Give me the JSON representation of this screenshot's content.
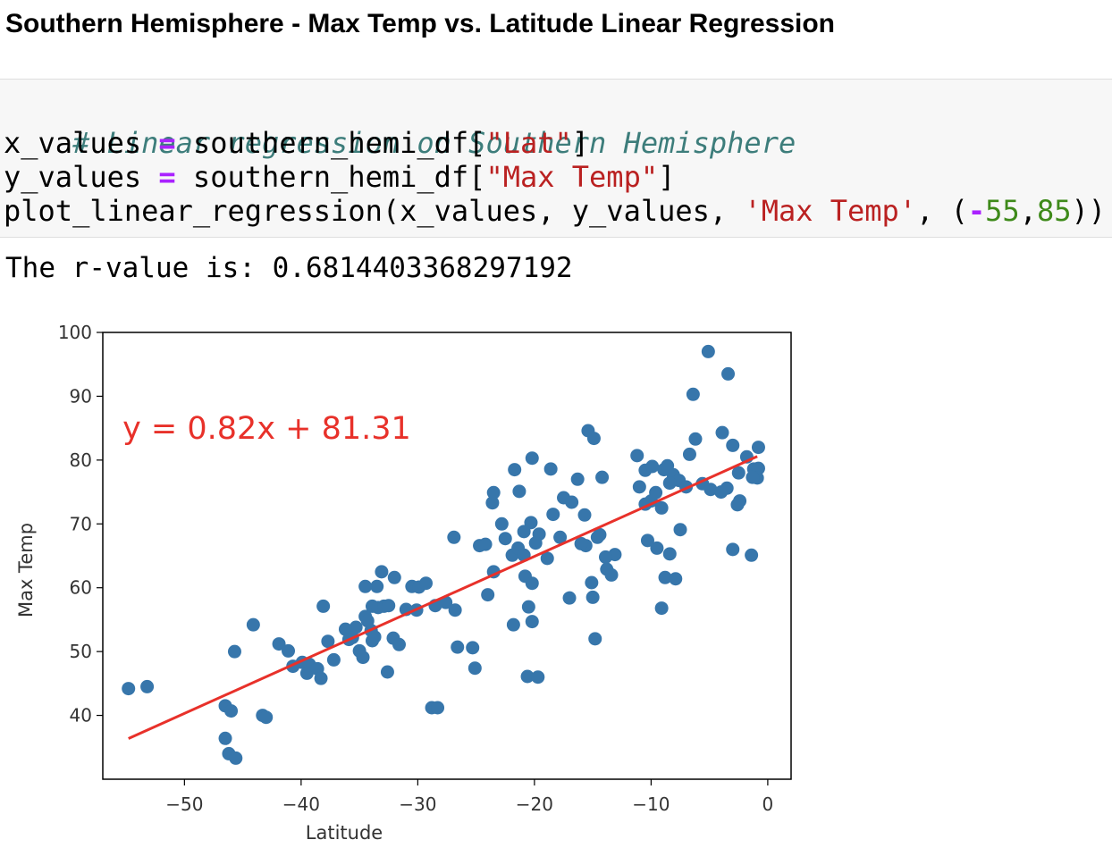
{
  "heading": "Southern Hemisphere - Max Temp vs. Latitude Linear Regression",
  "code": {
    "comment": "# Linear regression on Southern Hemisphere",
    "line2": {
      "var": "x_values",
      "op": "=",
      "call": "southern_hemi_df[",
      "str": "\"Lat\"",
      "close": "]"
    },
    "line3": {
      "var": "y_values",
      "op": "=",
      "call": "southern_hemi_df[",
      "str": "\"Max Temp\"",
      "close": "]"
    },
    "line4": {
      "call": "plot_linear_regression(x_values, y_values, ",
      "str": "'Max Temp'",
      "sep": ", (",
      "minus": "-",
      "n1": "55",
      "comma": ",",
      "n2": "85",
      "close": "))"
    }
  },
  "output_text": "The r-value is: 0.6814403368297192",
  "chart_data": {
    "type": "scatter",
    "xlabel": "Latitude",
    "ylabel": "Max Temp",
    "xlim": [
      -57,
      2
    ],
    "ylim": [
      30,
      100
    ],
    "xticks": [
      -50,
      -40,
      -30,
      -20,
      -10,
      0
    ],
    "yticks": [
      40,
      50,
      60,
      70,
      80,
      90,
      100
    ],
    "xtick_labels": [
      "−50",
      "−40",
      "−30",
      "−20",
      "−10",
      "0"
    ],
    "ytick_labels": [
      "40",
      "50",
      "60",
      "70",
      "80",
      "90",
      "100"
    ],
    "annotation": {
      "text": "y = 0.82x + 81.31",
      "x": -55,
      "y": 85
    },
    "regression": {
      "slope": 0.82,
      "intercept": 81.31,
      "x_range": [
        -54.8,
        -0.9
      ]
    },
    "colors": {
      "points": "#3776ab",
      "line": "#e8312a"
    },
    "points": [
      [
        -54.8,
        44.2
      ],
      [
        -53.2,
        44.5
      ],
      [
        -46.5,
        41.5
      ],
      [
        -46.0,
        40.7
      ],
      [
        -46.5,
        36.4
      ],
      [
        -46.2,
        34.0
      ],
      [
        -45.6,
        33.3
      ],
      [
        -45.7,
        50.0
      ],
      [
        -44.1,
        54.2
      ],
      [
        -43.3,
        40.0
      ],
      [
        -43.0,
        39.7
      ],
      [
        -41.9,
        51.2
      ],
      [
        -41.1,
        50.1
      ],
      [
        -39.9,
        48.3
      ],
      [
        -39.3,
        48.0
      ],
      [
        -39.5,
        46.6
      ],
      [
        -38.6,
        47.3
      ],
      [
        -38.3,
        45.8
      ],
      [
        -38.1,
        57.1
      ],
      [
        -37.7,
        51.6
      ],
      [
        -37.2,
        48.7
      ],
      [
        -35.6,
        52.2
      ],
      [
        -35.3,
        53.8
      ],
      [
        -35.0,
        50.1
      ],
      [
        -34.7,
        49.1
      ],
      [
        -34.5,
        55.5
      ],
      [
        -34.3,
        54.8
      ],
      [
        -33.9,
        57.1
      ],
      [
        -34.0,
        53.3
      ],
      [
        -33.7,
        52.3
      ],
      [
        -33.9,
        51.7
      ],
      [
        -33.4,
        56.9
      ],
      [
        -32.9,
        57.1
      ],
      [
        -32.5,
        57.2
      ],
      [
        -33.1,
        62.5
      ],
      [
        -33.5,
        60.2
      ],
      [
        -34.5,
        60.2
      ],
      [
        -32.6,
        46.8
      ],
      [
        -32.1,
        52.1
      ],
      [
        -31.6,
        51.1
      ],
      [
        -31.0,
        56.6
      ],
      [
        -30.5,
        60.2
      ],
      [
        -29.9,
        60.1
      ],
      [
        -29.3,
        60.7
      ],
      [
        -28.8,
        41.2
      ],
      [
        -28.3,
        41.2
      ],
      [
        -27.6,
        57.7
      ],
      [
        -26.8,
        56.5
      ],
      [
        -26.9,
        67.9
      ],
      [
        -26.6,
        50.7
      ],
      [
        -25.3,
        50.6
      ],
      [
        -25.1,
        47.4
      ],
      [
        -24.7,
        66.6
      ],
      [
        -24.2,
        66.8
      ],
      [
        -24.0,
        58.9
      ],
      [
        -23.5,
        62.5
      ],
      [
        -23.6,
        73.3
      ],
      [
        -23.5,
        74.9
      ],
      [
        -22.5,
        67.7
      ],
      [
        -21.9,
        65.1
      ],
      [
        -21.8,
        54.2
      ],
      [
        -21.4,
        66.2
      ],
      [
        -21.7,
        78.5
      ],
      [
        -21.3,
        75.1
      ],
      [
        -20.9,
        65.1
      ],
      [
        -20.8,
        61.8
      ],
      [
        -20.5,
        57.0
      ],
      [
        -20.2,
        60.7
      ],
      [
        -20.6,
        46.1
      ],
      [
        -19.7,
        46.0
      ],
      [
        -20.2,
        54.7
      ],
      [
        -20.3,
        70.2
      ],
      [
        -19.6,
        68.4
      ],
      [
        -20.2,
        80.3
      ],
      [
        -18.9,
        64.6
      ],
      [
        -18.6,
        78.6
      ],
      [
        -17.8,
        67.9
      ],
      [
        -17.5,
        74.1
      ],
      [
        -17.0,
        58.4
      ],
      [
        -16.3,
        77.0
      ],
      [
        -15.7,
        71.4
      ],
      [
        -15.6,
        66.6
      ],
      [
        -15.4,
        84.6
      ],
      [
        -14.9,
        83.4
      ],
      [
        -15.1,
        60.8
      ],
      [
        -14.6,
        67.9
      ],
      [
        -14.4,
        68.3
      ],
      [
        -14.2,
        77.3
      ],
      [
        -13.8,
        62.9
      ],
      [
        -13.4,
        62.0
      ],
      [
        -13.1,
        65.2
      ],
      [
        -14.8,
        52.0
      ],
      [
        -15.0,
        58.5
      ],
      [
        -11.2,
        80.7
      ],
      [
        -10.5,
        78.4
      ],
      [
        -10.0,
        73.6
      ],
      [
        -9.6,
        74.9
      ],
      [
        -9.1,
        72.5
      ],
      [
        -8.9,
        78.5
      ],
      [
        -8.6,
        79.1
      ],
      [
        -8.1,
        77.7
      ],
      [
        -7.6,
        76.8
      ],
      [
        -7.0,
        75.8
      ],
      [
        -6.7,
        80.9
      ],
      [
        -6.2,
        83.3
      ],
      [
        -5.6,
        76.3
      ],
      [
        -4.9,
        75.4
      ],
      [
        -4.0,
        75.0
      ],
      [
        -3.5,
        75.6
      ],
      [
        -3.0,
        82.3
      ],
      [
        -2.5,
        78.0
      ],
      [
        -1.8,
        80.5
      ],
      [
        -1.2,
        78.6
      ],
      [
        -0.8,
        82.0
      ],
      [
        -0.8,
        78.7
      ],
      [
        -0.9,
        77.2
      ],
      [
        -1.3,
        77.3
      ],
      [
        -2.4,
        73.6
      ],
      [
        -3.0,
        66.0
      ],
      [
        -1.4,
        65.1
      ],
      [
        -2.6,
        73.0
      ],
      [
        -3.4,
        93.5
      ],
      [
        -6.4,
        90.3
      ],
      [
        -5.1,
        97.0
      ],
      [
        -3.9,
        84.3
      ],
      [
        -10.3,
        67.4
      ],
      [
        -8.4,
        65.3
      ],
      [
        -8.8,
        61.6
      ],
      [
        -7.9,
        61.4
      ],
      [
        -9.1,
        56.8
      ],
      [
        -7.5,
        69.1
      ],
      [
        -9.5,
        66.2
      ],
      [
        -10.5,
        73.1
      ],
      [
        -11.0,
        75.8
      ],
      [
        -9.9,
        79.0
      ],
      [
        -8.4,
        76.4
      ],
      [
        -16.0,
        66.9
      ],
      [
        -13.9,
        64.8
      ],
      [
        -16.8,
        73.4
      ],
      [
        -19.9,
        67.0
      ],
      [
        -20.9,
        68.8
      ],
      [
        -22.8,
        70.0
      ],
      [
        -18.4,
        71.5
      ],
      [
        -28.5,
        57.2
      ],
      [
        -30.1,
        56.5
      ],
      [
        -36.2,
        53.5
      ],
      [
        -35.9,
        51.9
      ],
      [
        -32.0,
        61.6
      ],
      [
        -40.7,
        47.7
      ]
    ]
  }
}
